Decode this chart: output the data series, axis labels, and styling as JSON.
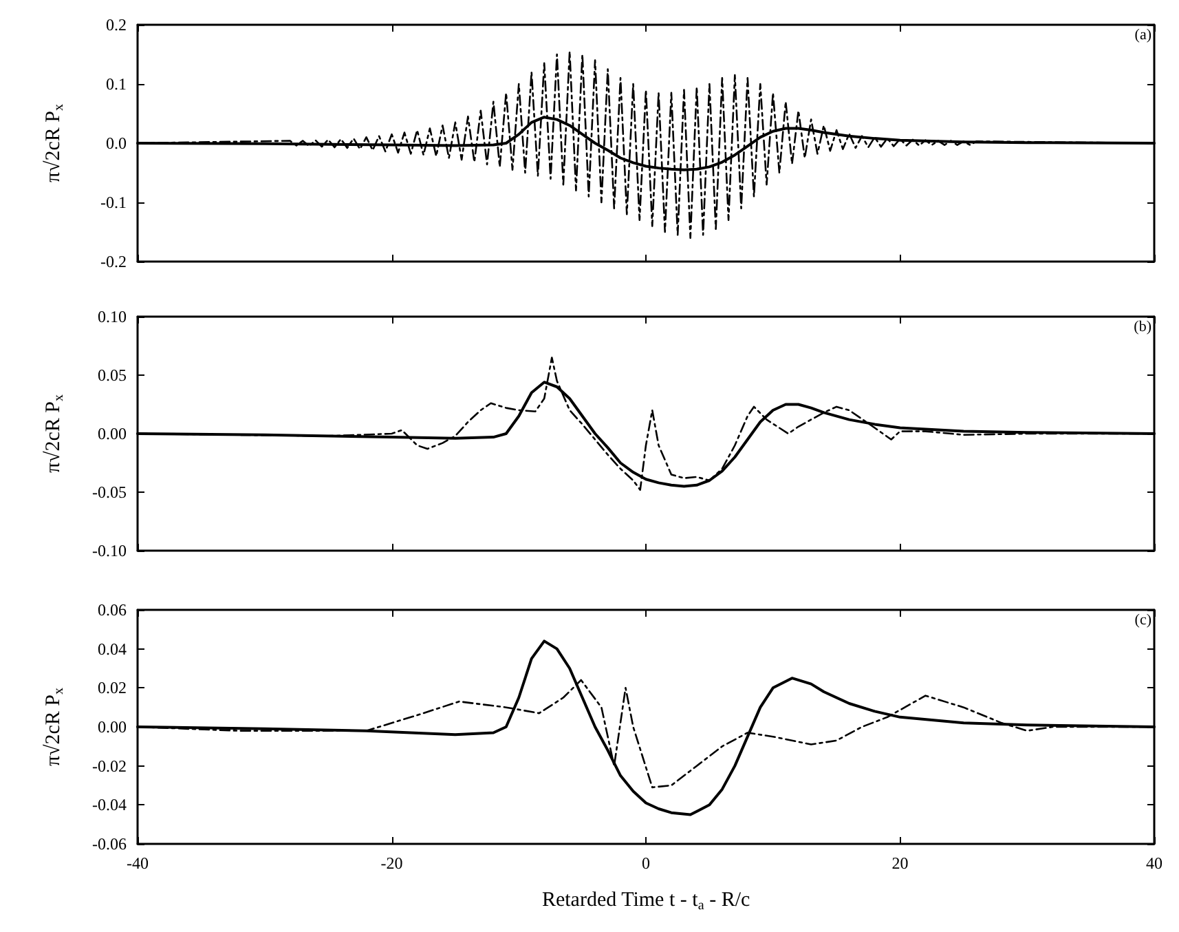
{
  "chart_data": [
    {
      "type": "line",
      "annotations": [
        "(a)"
      ],
      "ylabel": "π√2cR P$_{x}$",
      "xlim": [
        -40,
        40
      ],
      "xticks": [
        -40,
        -20,
        0,
        20,
        40
      ],
      "ylim": [
        -0.2,
        0.2
      ],
      "yticks": [
        {
          "value": -0.2,
          "label": "-0.2"
        },
        {
          "value": -0.1,
          "label": "-0.1"
        },
        {
          "value": 0,
          "label": "0.0"
        },
        {
          "value": 0.1,
          "label": "0.1"
        },
        {
          "value": 0.2,
          "label": "0.2"
        }
      ],
      "tick_labels": "y",
      "grid": false,
      "marker": "none",
      "series": [
        {
          "color": "#000000",
          "line_style": "dashed",
          "x": [
            -40,
            -28,
            -27.5,
            -27,
            -26.5,
            -26,
            -25.5,
            -25,
            -24.5,
            -24,
            -23.5,
            -23,
            -22.5,
            -22,
            -21.5,
            -21,
            -20.5,
            -20,
            -19.5,
            -19,
            -18.5,
            -18,
            -17.5,
            -17,
            -16.5,
            -16,
            -15.5,
            -15,
            -14.5,
            -14,
            -13.5,
            -13,
            -12.5,
            -12,
            -11.5,
            -11,
            -10.5,
            -10,
            -9.5,
            -9,
            -8.5,
            -8,
            -7.5,
            -7,
            -6.5,
            -6,
            -5.5,
            -5,
            -4.5,
            -4,
            -3.5,
            -3,
            -2.5,
            -2,
            -1.5,
            -1,
            -0.5,
            0,
            0.5,
            1,
            1.5,
            2,
            2.5,
            3,
            3.5,
            4,
            4.5,
            5,
            5.5,
            6,
            6.5,
            7,
            7.5,
            8,
            8.5,
            9,
            9.5,
            10,
            10.5,
            11,
            11.5,
            12,
            12.5,
            13,
            13.5,
            14,
            14.5,
            15,
            15.5,
            16,
            16.5,
            17,
            17.5,
            18,
            18.5,
            19,
            19.5,
            20,
            20.5,
            21,
            21.5,
            22,
            22.5,
            23,
            23.5,
            24,
            24.5,
            25,
            25.5,
            26,
            40
          ],
          "values": [
            0,
            0.004,
            -0.004,
            0.004,
            -0.005,
            0.005,
            -0.006,
            0.006,
            -0.007,
            0.007,
            -0.008,
            0.008,
            -0.01,
            0.01,
            -0.012,
            0.012,
            -0.014,
            0.015,
            -0.016,
            0.018,
            -0.018,
            0.022,
            -0.02,
            0.025,
            -0.022,
            0.03,
            -0.025,
            0.035,
            -0.028,
            0.045,
            -0.032,
            0.055,
            -0.036,
            0.07,
            -0.04,
            0.085,
            -0.045,
            0.1,
            -0.05,
            0.12,
            -0.055,
            0.135,
            -0.06,
            0.15,
            -0.07,
            0.155,
            -0.08,
            0.15,
            -0.09,
            0.14,
            -0.1,
            0.125,
            -0.11,
            0.11,
            -0.12,
            0.1,
            -0.13,
            0.09,
            -0.14,
            0.085,
            -0.15,
            0.085,
            -0.155,
            0.09,
            -0.16,
            0.095,
            -0.155,
            0.1,
            -0.145,
            0.11,
            -0.13,
            0.115,
            -0.11,
            0.11,
            -0.09,
            0.1,
            -0.07,
            0.085,
            -0.05,
            0.07,
            -0.035,
            0.055,
            -0.025,
            0.04,
            -0.018,
            0.03,
            -0.013,
            0.022,
            -0.01,
            0.016,
            -0.008,
            0.012,
            -0.007,
            0.01,
            -0.006,
            0.008,
            -0.005,
            0.007,
            -0.004,
            0.006,
            -0.004,
            0.005,
            -0.003,
            0.004,
            -0.003,
            0.004,
            -0.003,
            0.003,
            -0.003,
            0.003,
            0
          ]
        },
        {
          "color": "#000000",
          "line_style": "solid",
          "x": [
            -40,
            -30,
            -20,
            -15,
            -12,
            -11,
            -10,
            -9,
            -8,
            -7,
            -6,
            -5,
            -4,
            -3,
            -2,
            -1,
            0,
            1,
            2,
            3,
            4,
            5,
            6,
            7,
            8,
            9,
            10,
            11,
            12,
            13,
            14,
            16,
            18,
            20,
            25,
            30,
            40
          ],
          "values": [
            0,
            -0.001,
            -0.003,
            -0.004,
            -0.003,
            0,
            0.015,
            0.035,
            0.044,
            0.04,
            0.03,
            0.015,
            0,
            -0.012,
            -0.025,
            -0.033,
            -0.039,
            -0.042,
            -0.044,
            -0.045,
            -0.044,
            -0.04,
            -0.032,
            -0.02,
            -0.005,
            0.01,
            0.02,
            0.025,
            0.025,
            0.022,
            0.018,
            0.012,
            0.008,
            0.005,
            0.002,
            0.001,
            0
          ]
        }
      ]
    },
    {
      "type": "line",
      "annotations": [
        "(b)"
      ],
      "ylabel": "π√2cR P$_{x}$",
      "xlim": [
        -40,
        40
      ],
      "xticks": [
        -40,
        -20,
        0,
        20,
        40
      ],
      "ylim": [
        -0.1,
        0.1
      ],
      "yticks": [
        {
          "value": -0.1,
          "label": "-0.10"
        },
        {
          "value": -0.05,
          "label": "-0.05"
        },
        {
          "value": 0,
          "label": "0.00"
        },
        {
          "value": 0.05,
          "label": "0.05"
        },
        {
          "value": 0.1,
          "label": "0.10"
        }
      ],
      "tick_labels": "y",
      "grid": false,
      "marker": "none",
      "series": [
        {
          "color": "#000000",
          "line_style": "dashed",
          "x": [
            -40,
            -25,
            -20,
            -19.2,
            -18,
            -17.2,
            -16,
            -15,
            -14,
            -13,
            -12.2,
            -11,
            -10,
            -8.7,
            -8,
            -7.4,
            -7,
            -6,
            -5,
            -4,
            -3,
            -2,
            -1,
            -0.45,
            0,
            0.5,
            1,
            2,
            3,
            4,
            5,
            6,
            7,
            8,
            8.5,
            9.5,
            11.2,
            12,
            14,
            15,
            16,
            18,
            19.3,
            20,
            22,
            25,
            30,
            40
          ],
          "values": [
            0,
            -0.002,
            0,
            0.003,
            -0.01,
            -0.013,
            -0.008,
            -0.002,
            0.01,
            0.02,
            0.026,
            0.022,
            0.02,
            0.019,
            0.03,
            0.065,
            0.045,
            0.02,
            0.008,
            -0.005,
            -0.018,
            -0.03,
            -0.04,
            -0.048,
            -0.01,
            0.02,
            -0.01,
            -0.035,
            -0.038,
            -0.037,
            -0.04,
            -0.03,
            -0.01,
            0.015,
            0.023,
            0.012,
            0,
            0.006,
            0.018,
            0.023,
            0.02,
            0.005,
            -0.005,
            0.002,
            0.002,
            -0.001,
            0,
            0
          ]
        },
        {
          "color": "#000000",
          "line_style": "solid",
          "x": [
            -40,
            -30,
            -20,
            -15,
            -12,
            -11,
            -10,
            -9,
            -8,
            -7,
            -6,
            -5,
            -4,
            -3,
            -2,
            -1,
            0,
            1,
            2,
            3,
            4,
            5,
            6,
            7,
            8,
            9,
            10,
            11,
            12,
            13,
            14,
            16,
            18,
            20,
            25,
            30,
            40
          ],
          "values": [
            0,
            -0.001,
            -0.003,
            -0.004,
            -0.003,
            0,
            0.015,
            0.035,
            0.044,
            0.04,
            0.03,
            0.015,
            0,
            -0.012,
            -0.025,
            -0.033,
            -0.039,
            -0.042,
            -0.044,
            -0.045,
            -0.044,
            -0.04,
            -0.032,
            -0.02,
            -0.005,
            0.01,
            0.02,
            0.025,
            0.025,
            0.022,
            0.018,
            0.012,
            0.008,
            0.005,
            0.002,
            0.001,
            0
          ]
        }
      ]
    },
    {
      "type": "line",
      "annotations": [
        "(c)"
      ],
      "ylabel": "π√2cR P$_{x}$",
      "xlabel": "Retarded Time t - t$_{a}$ - R/c",
      "xlim": [
        -40,
        40
      ],
      "xticks": [
        -40,
        -20,
        0,
        20,
        40
      ],
      "ylim": [
        -0.06,
        0.06
      ],
      "yticks": [
        {
          "value": -0.06,
          "label": "-0.06"
        },
        {
          "value": -0.04,
          "label": "-0.04"
        },
        {
          "value": -0.02,
          "label": "-0.02"
        },
        {
          "value": 0,
          "label": "0.00"
        },
        {
          "value": 0.02,
          "label": "0.02"
        },
        {
          "value": 0.04,
          "label": "0.04"
        },
        {
          "value": 0.06,
          "label": "0.06"
        }
      ],
      "grid": false,
      "marker": "none",
      "series": [
        {
          "color": "#000000",
          "line_style": "dashed",
          "x": [
            -40,
            -32,
            -22,
            -18,
            -14.7,
            -11,
            -8.4,
            -6.5,
            -5.1,
            -3.5,
            -2.5,
            -1.6,
            -1,
            0.5,
            2,
            4,
            6,
            8,
            10,
            13,
            15,
            17,
            19,
            22,
            25,
            28,
            30,
            32,
            40
          ],
          "values": [
            0,
            -0.002,
            -0.002,
            0.006,
            0.013,
            0.01,
            0.007,
            0.015,
            0.024,
            0.01,
            -0.02,
            0.02,
            0,
            -0.031,
            -0.03,
            -0.02,
            -0.01,
            -0.003,
            -0.005,
            -0.009,
            -0.007,
            0,
            0.005,
            0.016,
            0.01,
            0.002,
            -0.002,
            0,
            0
          ]
        },
        {
          "color": "#000000",
          "line_style": "solid",
          "x": [
            -40,
            -30,
            -22,
            -15,
            -12,
            -11,
            -10,
            -9,
            -8,
            -7,
            -6,
            -5,
            -4,
            -3,
            -2,
            -1,
            0,
            1,
            2,
            3.5,
            5,
            6,
            7,
            8,
            9,
            10,
            11.5,
            13,
            14,
            16,
            18,
            20,
            25,
            30,
            40
          ],
          "values": [
            0,
            -0.001,
            -0.002,
            -0.004,
            -0.003,
            0,
            0.015,
            0.035,
            0.044,
            0.04,
            0.03,
            0.015,
            0,
            -0.012,
            -0.025,
            -0.033,
            -0.039,
            -0.042,
            -0.044,
            -0.045,
            -0.04,
            -0.032,
            -0.02,
            -0.005,
            0.01,
            0.02,
            0.025,
            0.022,
            0.018,
            0.012,
            0.008,
            0.005,
            0.002,
            0.001,
            0
          ]
        }
      ]
    }
  ]
}
